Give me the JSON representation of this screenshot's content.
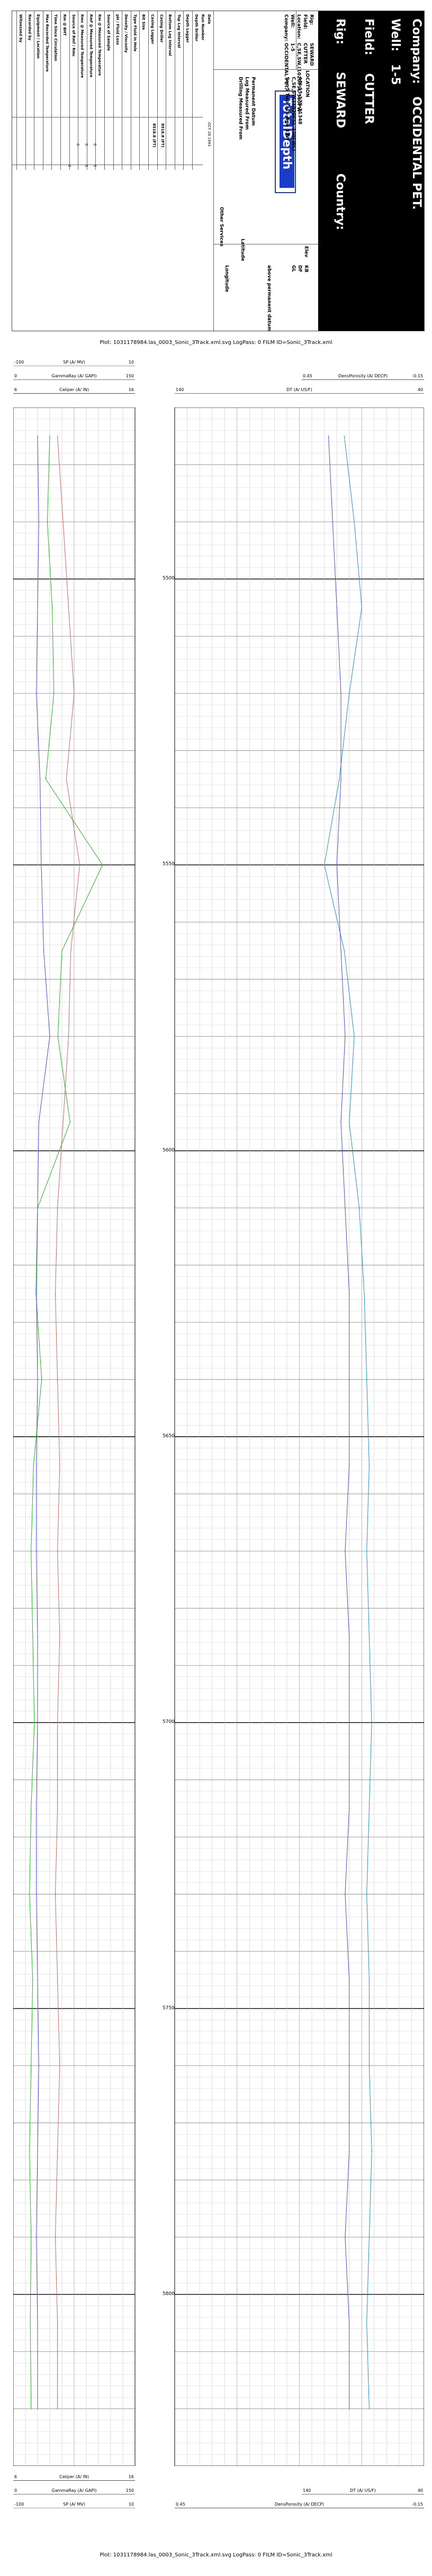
{
  "header": {
    "company_label": "Company:",
    "company_value": "OCCIDENTAL PET.",
    "well_label": "Well:",
    "well_value": "1-5",
    "field_label": "Field:",
    "field_value": "CUTTER",
    "rig_label": "Rig:",
    "rig_value": "SEWARD",
    "country_label": "Country:",
    "country_value": "",
    "logo_text": "TotalDepth",
    "location_title": "LOCATION",
    "summary": [
      {
        "label": "Rig:",
        "value": "SEWARD"
      },
      {
        "label": "Field:",
        "value": "CUTTER"
      },
      {
        "label": "Location:",
        "value": "C,SE,SW,(1020FSL 330FW"
      },
      {
        "label": "Well:",
        "value": "1-5"
      },
      {
        "label": "Company:",
        "value": "OCCIDENTAL PET."
      }
    ],
    "location_lines": [
      "API 15-175-21348",
      "C,SE,SW,(1020FSL 330FWL)",
      "Sec 5 Twp 31S Rge 33W"
    ],
    "datum_rows": [
      {
        "label": "Permanent Datum",
        "value": ""
      },
      {
        "label": "Log Measured From",
        "value": ""
      },
      {
        "label": "Drilling Measured From",
        "value": ""
      }
    ],
    "elev_label": "Elev",
    "elev_values": [
      "KB",
      "DF",
      "GL"
    ],
    "elev_note": "above permanent datum",
    "misc_labels": [
      "Latitude",
      "Longitude",
      "Other Services"
    ],
    "date_label": "Date",
    "date_value": "OCT 28 1993",
    "run_label": "Run Number",
    "table_rows": [
      "Depth Driller",
      "Depth Logger",
      "Top Log Interval",
      "Bottom Log Interval",
      "Casing Driller",
      "Casing Logger",
      "Bit Size",
      "Type Fluid in Hole",
      "Density / Viscosity",
      "pH / Fluid Loss",
      "Source of Sample",
      "Rm @ Measured Temperature",
      "Rmf @ Measured Temperature",
      "Rmc @ Measured Temperature",
      "Source of Rmf / Rmc",
      "Rm @ BHT",
      "Time Since Circulation",
      "Max Recorded Temperature",
      "Equipment / Location",
      "Recorded by",
      "Witnessed by"
    ],
    "table_value_cols": [
      "8518.8 (FT)",
      "8518.8 (FT)"
    ]
  },
  "plot_title": "Plot: 1031178984.las_0003_Sonic_3Track.xml.svg LogPass: 0 FILM ID=Sonic_3Track.xml",
  "scales_top": [
    {
      "lo": "-100",
      "mid": "SP (A/ MV)",
      "hi": "10",
      "color": "#a0a0a0"
    },
    {
      "lo": "0",
      "mid": "GammaRay (A/ GAPI)",
      "hi": "150",
      "color": "#1eb41e"
    },
    {
      "lo": "6",
      "mid": "Caliper (A/ IN)",
      "hi": "16",
      "color": "#7a3a3a"
    },
    {
      "lo": "0.45",
      "mid": "DensPorosity (A/ DECP)",
      "hi": "-0.15",
      "color": "#4a4ad0"
    },
    {
      "lo": "140",
      "mid": "DT (A/ US/F)",
      "hi": "40",
      "color": "#1e90c8"
    }
  ],
  "scales_bottom": [
    {
      "lo": "6",
      "mid": "Caliper (A/ IN)",
      "hi": "16",
      "color": "#7a3a3a"
    },
    {
      "lo": "0",
      "mid": "GammaRay (A/ GAPI)",
      "hi": "150",
      "color": "#1eb41e"
    },
    {
      "lo": "-100",
      "mid": "SP (A/ MV)",
      "hi": "10",
      "color": "#a0a0a0"
    },
    {
      "lo": "140",
      "mid": "DT (A/ US/F)",
      "hi": "40",
      "color": "#1e90c8"
    },
    {
      "lo": "0.45",
      "mid": "DensPorosity (A/ DECP)",
      "hi": "-0.15",
      "color": "#4a4ad0"
    }
  ],
  "depth_labels": [
    "5500",
    "5550",
    "5600",
    "5650",
    "5700",
    "5750",
    "5800"
  ],
  "chart_data": {
    "type": "line",
    "depth_range": [
      5470,
      5830
    ],
    "depths": [
      5475,
      5490,
      5505,
      5520,
      5535,
      5550,
      5565,
      5580,
      5595,
      5610,
      5625,
      5640,
      5655,
      5670,
      5685,
      5700,
      5715,
      5730,
      5745,
      5760,
      5775,
      5790,
      5805,
      5820
    ],
    "series": [
      {
        "name": "GammaRay",
        "xlim": [
          0,
          150
        ],
        "color": "#1eb41e",
        "values": [
          45,
          42,
          48,
          50,
          40,
          110,
          60,
          55,
          70,
          30,
          28,
          35,
          25,
          22,
          24,
          26,
          22,
          20,
          24,
          22,
          20,
          22,
          21,
          22
        ]
      },
      {
        "name": "SP",
        "xlim": [
          -100,
          10
        ],
        "color": "#c86464",
        "values": [
          -60,
          -55,
          -50,
          -45,
          -52,
          -40,
          -48,
          -50,
          -55,
          -60,
          -62,
          -60,
          -58,
          -60,
          -58,
          -60,
          -60,
          -62,
          -60,
          -58,
          -60,
          -62,
          -60,
          -60
        ]
      },
      {
        "name": "Caliper",
        "xlim": [
          6,
          16
        ],
        "color": "#4a4ad0",
        "values": [
          8.0,
          8.1,
          8.0,
          7.9,
          8.2,
          8.3,
          8.5,
          9.0,
          8.1,
          8.0,
          7.9,
          8.0,
          7.9,
          7.9,
          8.0,
          8.0,
          7.9,
          7.9,
          8.0,
          8.1,
          8.0,
          7.9,
          8.0,
          8.0
        ]
      },
      {
        "name": "DT",
        "xlim": [
          140,
          40
        ],
        "color": "#1e90c8",
        "values": [
          72,
          68,
          65,
          70,
          74,
          80,
          72,
          68,
          70,
          66,
          64,
          63,
          62,
          63,
          62,
          61,
          62,
          63,
          62,
          62,
          61,
          62,
          63,
          62
        ]
      },
      {
        "name": "DensPorosity",
        "xlim": [
          0.45,
          -0.15
        ],
        "color": "#4a4ad0",
        "values": [
          0.08,
          0.07,
          0.06,
          0.05,
          0.05,
          0.06,
          0.05,
          0.04,
          0.05,
          0.04,
          0.03,
          0.03,
          0.03,
          0.04,
          0.03,
          0.03,
          0.03,
          0.04,
          0.03,
          0.03,
          0.03,
          0.04,
          0.03,
          0.03
        ]
      }
    ]
  }
}
